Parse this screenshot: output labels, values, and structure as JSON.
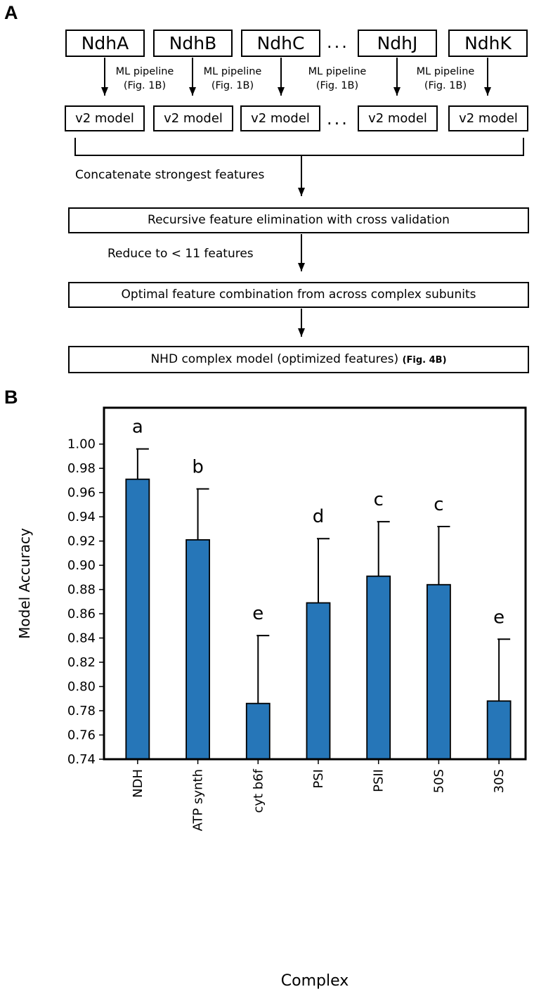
{
  "panel_a": {
    "letter": "A",
    "subunits": [
      "NdhA",
      "NdhB",
      "NdhC",
      "NdhJ",
      "NdhK"
    ],
    "pipeline_line1": "ML pipeline",
    "pipeline_line2": "(Fig. 1B)",
    "model_label": "v2 model",
    "ellipsis": "...",
    "concat_label": "Concatenate strongest features",
    "rfecv_label": "Recursive feature elimination with cross validation",
    "reduce_label": "Reduce to < 11 features",
    "optimal_label": "Optimal feature combination from across complex subunits",
    "final_label": "NHD complex model (optimized features)",
    "final_ref": "(Fig. 4B)"
  },
  "panel_b": {
    "letter": "B"
  },
  "chart_data": {
    "type": "bar",
    "categories": [
      "NDH",
      "ATP synth",
      "cyt b6f",
      "PSI",
      "PSII",
      "50S",
      "30S"
    ],
    "values": [
      0.971,
      0.921,
      0.786,
      0.869,
      0.891,
      0.884,
      0.788
    ],
    "errors": [
      0.025,
      0.042,
      0.056,
      0.053,
      0.045,
      0.048,
      0.051
    ],
    "letters": [
      "a",
      "b",
      "e",
      "d",
      "c",
      "c",
      "e"
    ],
    "xlabel": "Complex",
    "ylabel": "Model Accuracy",
    "ylim": [
      0.74,
      1.03
    ],
    "yticks": [
      "0.74",
      "0.76",
      "0.78",
      "0.80",
      "0.82",
      "0.84",
      "0.86",
      "0.88",
      "0.90",
      "0.92",
      "0.94",
      "0.96",
      "0.98",
      "1.00"
    ],
    "bar_color": "#2676b8"
  }
}
